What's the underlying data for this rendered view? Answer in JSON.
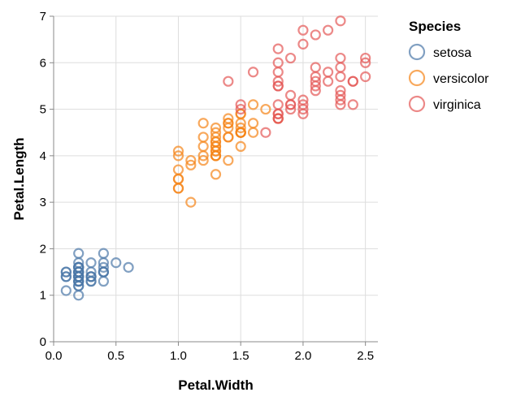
{
  "chart_data": {
    "type": "scatter",
    "xlabel": "Petal.Width",
    "ylabel": "Petal.Length",
    "xlim": [
      0,
      2.6
    ],
    "ylim": [
      0,
      7
    ],
    "xticks": [
      0.0,
      0.5,
      1.0,
      1.5,
      2.0,
      2.5
    ],
    "xtick_labels": [
      "0.0",
      "0.5",
      "1.0",
      "1.5",
      "2.0",
      "2.5"
    ],
    "yticks": [
      0,
      1,
      2,
      3,
      4,
      5,
      6,
      7
    ],
    "ytick_labels": [
      "0",
      "1",
      "2",
      "3",
      "4",
      "5",
      "6",
      "7"
    ],
    "grid": true,
    "legend": {
      "title": "Species",
      "position": "right"
    },
    "series": [
      {
        "name": "setosa",
        "color": "#4c78a8",
        "points": [
          [
            0.2,
            1.4
          ],
          [
            0.2,
            1.4
          ],
          [
            0.2,
            1.3
          ],
          [
            0.2,
            1.5
          ],
          [
            0.2,
            1.4
          ],
          [
            0.4,
            1.7
          ],
          [
            0.3,
            1.4
          ],
          [
            0.2,
            1.5
          ],
          [
            0.2,
            1.4
          ],
          [
            0.1,
            1.5
          ],
          [
            0.2,
            1.5
          ],
          [
            0.2,
            1.6
          ],
          [
            0.1,
            1.4
          ],
          [
            0.1,
            1.1
          ],
          [
            0.2,
            1.2
          ],
          [
            0.4,
            1.5
          ],
          [
            0.4,
            1.3
          ],
          [
            0.3,
            1.4
          ],
          [
            0.3,
            1.7
          ],
          [
            0.3,
            1.5
          ],
          [
            0.2,
            1.7
          ],
          [
            0.4,
            1.5
          ],
          [
            0.2,
            1.0
          ],
          [
            0.5,
            1.7
          ],
          [
            0.2,
            1.9
          ],
          [
            0.2,
            1.6
          ],
          [
            0.4,
            1.6
          ],
          [
            0.2,
            1.5
          ],
          [
            0.2,
            1.4
          ],
          [
            0.2,
            1.6
          ],
          [
            0.2,
            1.6
          ],
          [
            0.4,
            1.5
          ],
          [
            0.1,
            1.5
          ],
          [
            0.2,
            1.4
          ],
          [
            0.2,
            1.5
          ],
          [
            0.2,
            1.2
          ],
          [
            0.2,
            1.3
          ],
          [
            0.1,
            1.4
          ],
          [
            0.2,
            1.3
          ],
          [
            0.2,
            1.5
          ],
          [
            0.3,
            1.3
          ],
          [
            0.3,
            1.3
          ],
          [
            0.2,
            1.3
          ],
          [
            0.6,
            1.6
          ],
          [
            0.4,
            1.9
          ],
          [
            0.3,
            1.4
          ],
          [
            0.2,
            1.6
          ],
          [
            0.2,
            1.4
          ],
          [
            0.2,
            1.5
          ],
          [
            0.2,
            1.4
          ]
        ]
      },
      {
        "name": "versicolor",
        "color": "#f58518",
        "points": [
          [
            1.4,
            4.7
          ],
          [
            1.5,
            4.5
          ],
          [
            1.5,
            4.9
          ],
          [
            1.3,
            4.0
          ],
          [
            1.5,
            4.6
          ],
          [
            1.3,
            4.5
          ],
          [
            1.6,
            4.7
          ],
          [
            1.0,
            3.3
          ],
          [
            1.3,
            4.6
          ],
          [
            1.4,
            3.9
          ],
          [
            1.0,
            3.5
          ],
          [
            1.5,
            4.2
          ],
          [
            1.0,
            4.0
          ],
          [
            1.4,
            4.7
          ],
          [
            1.3,
            3.6
          ],
          [
            1.4,
            4.4
          ],
          [
            1.5,
            4.5
          ],
          [
            1.0,
            4.1
          ],
          [
            1.5,
            4.5
          ],
          [
            1.1,
            3.9
          ],
          [
            1.8,
            4.8
          ],
          [
            1.3,
            4.0
          ],
          [
            1.5,
            4.9
          ],
          [
            1.2,
            4.7
          ],
          [
            1.3,
            4.3
          ],
          [
            1.4,
            4.4
          ],
          [
            1.4,
            4.8
          ],
          [
            1.7,
            5.0
          ],
          [
            1.5,
            4.5
          ],
          [
            1.0,
            3.5
          ],
          [
            1.1,
            3.8
          ],
          [
            1.0,
            3.7
          ],
          [
            1.2,
            3.9
          ],
          [
            1.6,
            5.1
          ],
          [
            1.5,
            4.5
          ],
          [
            1.6,
            4.5
          ],
          [
            1.5,
            4.7
          ],
          [
            1.3,
            4.4
          ],
          [
            1.3,
            4.1
          ],
          [
            1.3,
            4.0
          ],
          [
            1.2,
            4.4
          ],
          [
            1.4,
            4.6
          ],
          [
            1.2,
            4.0
          ],
          [
            1.0,
            3.3
          ],
          [
            1.3,
            4.2
          ],
          [
            1.2,
            4.2
          ],
          [
            1.3,
            4.2
          ],
          [
            1.3,
            4.3
          ],
          [
            1.1,
            3.0
          ],
          [
            1.3,
            4.1
          ]
        ]
      },
      {
        "name": "virginica",
        "color": "#e45756",
        "points": [
          [
            2.5,
            6.0
          ],
          [
            1.9,
            5.1
          ],
          [
            2.1,
            5.9
          ],
          [
            1.8,
            5.6
          ],
          [
            2.2,
            5.8
          ],
          [
            2.1,
            6.6
          ],
          [
            1.7,
            4.5
          ],
          [
            1.8,
            6.3
          ],
          [
            1.8,
            5.8
          ],
          [
            2.5,
            6.1
          ],
          [
            2.0,
            5.1
          ],
          [
            1.9,
            5.3
          ],
          [
            2.1,
            5.5
          ],
          [
            2.0,
            5.0
          ],
          [
            2.4,
            5.1
          ],
          [
            2.3,
            5.3
          ],
          [
            1.8,
            5.5
          ],
          [
            2.2,
            6.7
          ],
          [
            2.3,
            6.9
          ],
          [
            1.5,
            5.0
          ],
          [
            2.3,
            5.7
          ],
          [
            2.0,
            4.9
          ],
          [
            2.0,
            6.7
          ],
          [
            1.8,
            4.9
          ],
          [
            2.1,
            5.7
          ],
          [
            1.8,
            6.0
          ],
          [
            1.8,
            4.8
          ],
          [
            1.8,
            4.9
          ],
          [
            2.1,
            5.6
          ],
          [
            1.6,
            5.8
          ],
          [
            1.9,
            6.1
          ],
          [
            2.0,
            6.4
          ],
          [
            2.2,
            5.6
          ],
          [
            1.5,
            5.1
          ],
          [
            1.4,
            5.6
          ],
          [
            2.3,
            6.1
          ],
          [
            2.4,
            5.6
          ],
          [
            1.8,
            5.5
          ],
          [
            1.8,
            4.8
          ],
          [
            2.1,
            5.4
          ],
          [
            2.4,
            5.6
          ],
          [
            2.3,
            5.1
          ],
          [
            1.9,
            5.1
          ],
          [
            2.3,
            5.9
          ],
          [
            2.5,
            5.7
          ],
          [
            2.3,
            5.2
          ],
          [
            1.9,
            5.0
          ],
          [
            2.0,
            5.2
          ],
          [
            2.3,
            5.4
          ],
          [
            1.8,
            5.1
          ]
        ]
      }
    ]
  }
}
